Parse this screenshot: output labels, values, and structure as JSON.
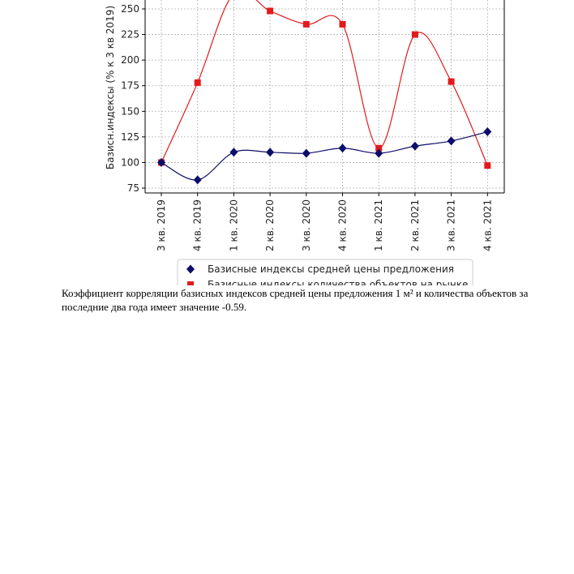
{
  "chart_data": {
    "type": "line",
    "title": "",
    "xlabel": "",
    "ylabel": "Базисн.индексы (% к 3 кв 2019)",
    "ylim": [
      70,
      262
    ],
    "yticks": [
      75,
      100,
      125,
      150,
      175,
      200,
      225,
      250
    ],
    "grid": true,
    "categories": [
      "3 кв. 2019",
      "4 кв. 2019",
      "1 кв. 2020",
      "2 кв. 2020",
      "3 кв. 2020",
      "4 кв. 2020",
      "1 кв. 2021",
      "2 кв. 2021",
      "3 кв. 2021",
      "4 кв. 2021"
    ],
    "series": [
      {
        "name": "Базисные индексы средней цены предложения",
        "marker": "diamond",
        "color": "#0d0d6b",
        "values": [
          100,
          83,
          110,
          110,
          109,
          114,
          109,
          116,
          121,
          130
        ]
      },
      {
        "name": "Базисные индексы количества объектов на рынке",
        "marker": "square",
        "color": "#e31a1c",
        "values": [
          100,
          178,
          265,
          248,
          235,
          235,
          114,
          225,
          179,
          97
        ]
      }
    ],
    "legend_position": "bottom"
  },
  "caption": {
    "text": "Коэффициент корреляции базисных индексов средней цены предложения 1 м² и количества объектов за последние два года имеет значение -0.59."
  }
}
